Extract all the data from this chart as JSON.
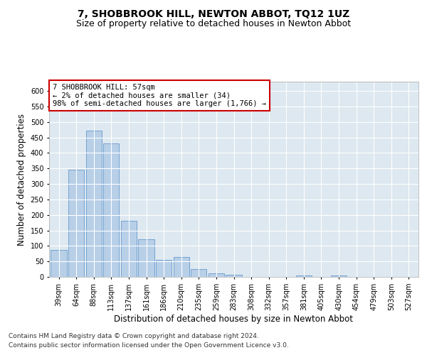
{
  "title": "7, SHOBBROOK HILL, NEWTON ABBOT, TQ12 1UZ",
  "subtitle": "Size of property relative to detached houses in Newton Abbot",
  "xlabel": "Distribution of detached houses by size in Newton Abbot",
  "ylabel": "Number of detached properties",
  "categories": [
    "39sqm",
    "64sqm",
    "88sqm",
    "113sqm",
    "137sqm",
    "161sqm",
    "186sqm",
    "210sqm",
    "235sqm",
    "259sqm",
    "283sqm",
    "308sqm",
    "332sqm",
    "357sqm",
    "381sqm",
    "405sqm",
    "430sqm",
    "454sqm",
    "479sqm",
    "503sqm",
    "527sqm"
  ],
  "values": [
    88,
    347,
    472,
    430,
    182,
    122,
    55,
    65,
    25,
    11,
    8,
    0,
    0,
    0,
    4,
    0,
    4,
    0,
    0,
    0,
    0
  ],
  "bar_color": "#b8cfe8",
  "bar_edge_color": "#6699cc",
  "annotation_text": "7 SHOBBROOK HILL: 57sqm\n← 2% of detached houses are smaller (34)\n98% of semi-detached houses are larger (1,766) →",
  "annotation_box_color": "#ffffff",
  "annotation_box_edge": "#cc0000",
  "ylim": [
    0,
    630
  ],
  "yticks": [
    0,
    50,
    100,
    150,
    200,
    250,
    300,
    350,
    400,
    450,
    500,
    550,
    600
  ],
  "footnote1": "Contains HM Land Registry data © Crown copyright and database right 2024.",
  "footnote2": "Contains public sector information licensed under the Open Government Licence v3.0.",
  "background_color": "#dde8f0",
  "grid_color": "#ffffff",
  "title_fontsize": 10,
  "subtitle_fontsize": 9,
  "label_fontsize": 8.5,
  "tick_fontsize": 7,
  "annotation_fontsize": 7.5,
  "footnote_fontsize": 6.5
}
